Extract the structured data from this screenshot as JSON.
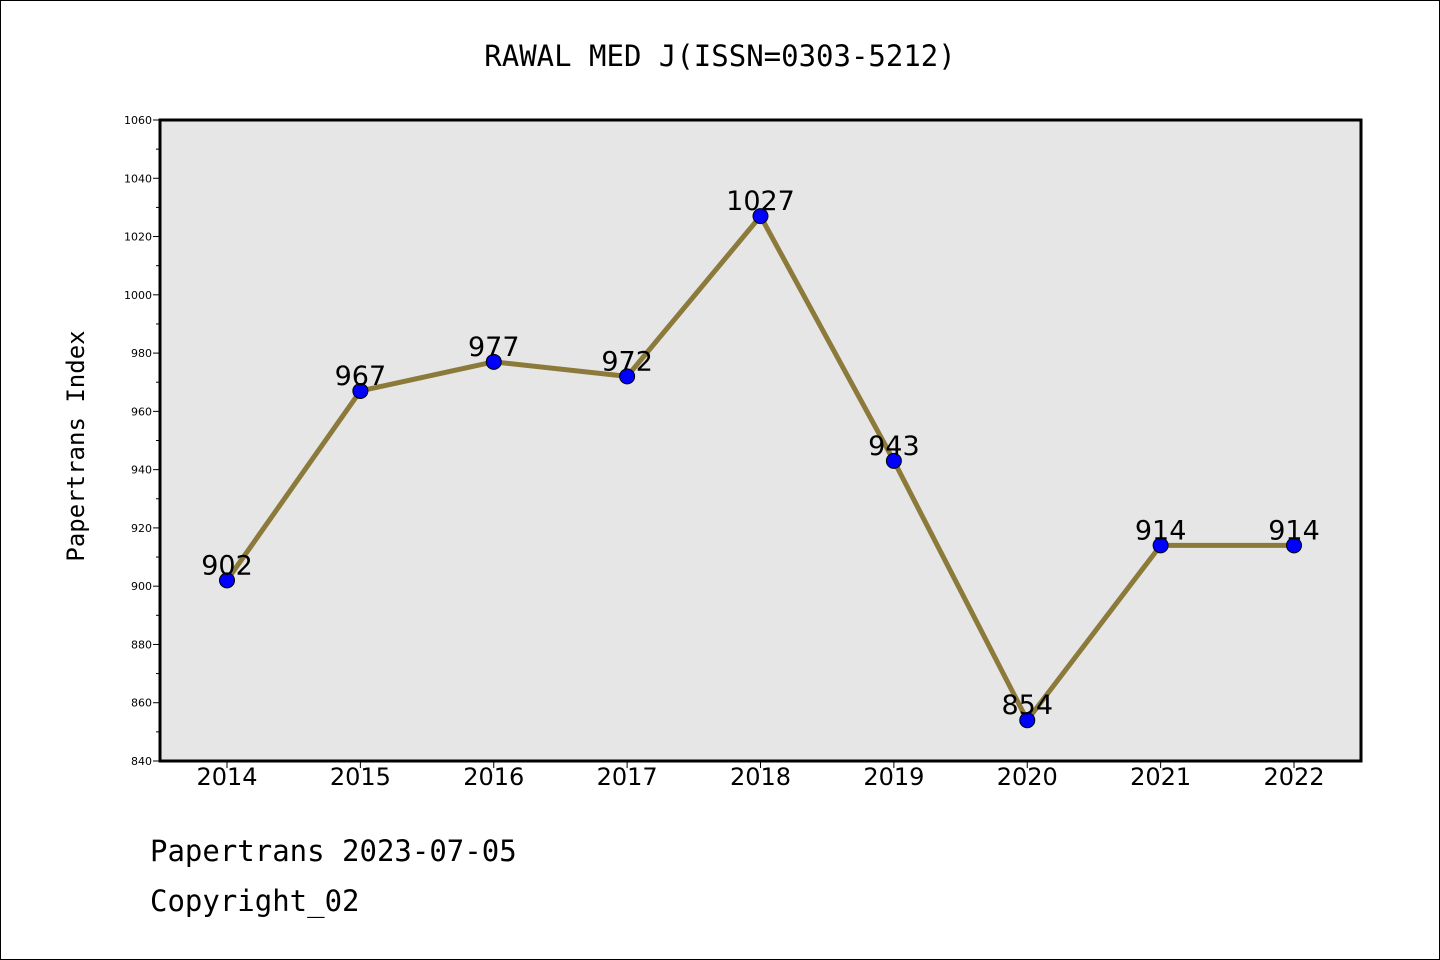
{
  "chart_data": {
    "type": "line",
    "title": "RAWAL MED J(ISSN=0303-5212)",
    "ylabel": "Papertrans Index",
    "xlabel": "",
    "categories": [
      "2014",
      "2015",
      "2016",
      "2017",
      "2018",
      "2019",
      "2020",
      "2021",
      "2022"
    ],
    "series": [
      {
        "values": [
          902,
          967,
          977,
          972,
          1027,
          943,
          854,
          914,
          914
        ]
      }
    ],
    "data_labels": [
      "902",
      "967",
      "977",
      "972",
      "1027",
      "943",
      "854",
      "914",
      "914"
    ],
    "ylim": [
      840,
      1060
    ],
    "yticks": [
      "840",
      "860",
      "880",
      "900",
      "920",
      "940",
      "960",
      "980",
      "1000",
      "1020",
      "1040",
      "1060"
    ],
    "grid": false,
    "legend": "none",
    "colors": {
      "line": "#8b7a3a",
      "marker": "#0000ff",
      "plot_background": "#e6e6e6"
    }
  },
  "footer": {
    "date_text": "Papertrans 2023-07-05",
    "copyright_text": "Copyright_02"
  }
}
